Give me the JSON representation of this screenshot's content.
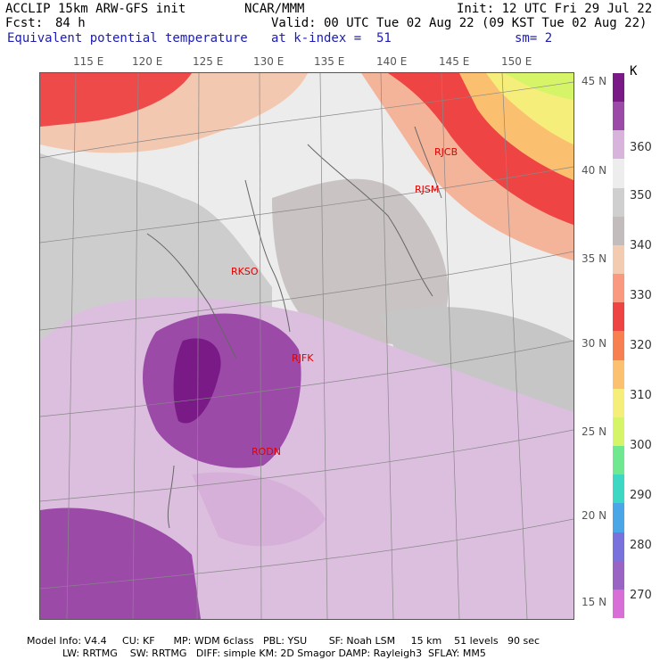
{
  "header": {
    "model": "ACCLIP 15km ARW-GFS init",
    "center": "NCAR/MMM",
    "init": "Init: 12 UTC Fri 29 Jul 22",
    "fcst_label": "Fcst:",
    "fcst_value": "84 h",
    "valid": "Valid: 00 UTC Tue 02 Aug 22 (09 KST Tue 02 Aug 22)",
    "field": "Equivalent potential temperature",
    "kindex": "at k-index =  51",
    "sm": "sm= 2"
  },
  "map": {
    "longitude_labels": [
      "115 E",
      "120 E",
      "125 E",
      "130 E",
      "135 E",
      "140 E",
      "145 E",
      "150 E"
    ],
    "latitude_labels": [
      "45 N",
      "40 N",
      "35 N",
      "30 N",
      "25 N",
      "20 N",
      "15 N"
    ],
    "stations": [
      {
        "id": "RJCB",
        "name": "rjcb"
      },
      {
        "id": "RJSM",
        "name": "rjsm"
      },
      {
        "id": "RKSO",
        "name": "rkso"
      },
      {
        "id": "RJFK",
        "name": "rjfk"
      },
      {
        "id": "RODN",
        "name": "rodn"
      }
    ],
    "station_color": "#e00000"
  },
  "colorbar": {
    "unit": "K",
    "labels": [
      "360",
      "350",
      "340",
      "330",
      "320",
      "310",
      "300",
      "290",
      "280",
      "270"
    ],
    "colors": [
      "#7a1a86",
      "#9c4aa8",
      "#d8b4dc",
      "#ededed",
      "#cfcfcf",
      "#c2bcbc",
      "#f3cbb0",
      "#f99a80",
      "#ef4444",
      "#f88050",
      "#fbc070",
      "#f6ee7a",
      "#d6f468",
      "#6fe890",
      "#3cd8c4",
      "#4aa6e6",
      "#7a72dc",
      "#9a64c4",
      "#d86fd6"
    ]
  },
  "footer": {
    "line1": "Model Info: V4.4     CU: KF      MP: WDM 6class   PBL: YSU       SF: Noah LSM     15 km    51 levels   90 sec",
    "line2": "LW: RRTMG    SW: RRTMG   DIFF: simple KM: 2D Smagor DAMP: Rayleigh3  SFLAY: MM5"
  }
}
